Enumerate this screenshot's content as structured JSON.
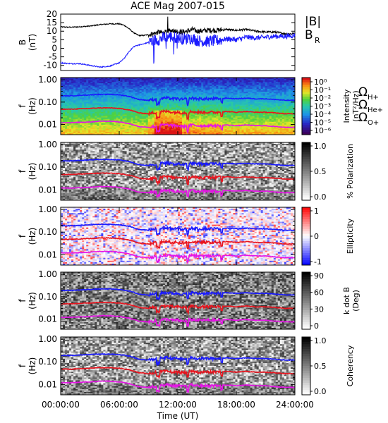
{
  "title": "ACE Mag 2007-015",
  "chart_data": [
    {
      "type": "line",
      "panel": "b-field",
      "ylabel": "B\n(nT)",
      "ylim": [
        -13,
        20
      ],
      "yticks": [
        20,
        15,
        10,
        5,
        0,
        -5,
        -10
      ],
      "x_unit_hours": [
        0,
        24
      ],
      "legend": [
        {
          "label": "|B|",
          "color": "#000000"
        },
        {
          "label": "B",
          "sub": "R",
          "color": "#1a1aff"
        }
      ],
      "series": [
        {
          "name": "|B|",
          "color": "#000000",
          "x": [
            0,
            1,
            2,
            3,
            4,
            5,
            6,
            6.5,
            7,
            7.5,
            8,
            8.5,
            9,
            9.5,
            10,
            10.5,
            11,
            11.5,
            12,
            12.5,
            13,
            13.5,
            14,
            15,
            16,
            17,
            18,
            19,
            20,
            21,
            22,
            23,
            24
          ],
          "y": [
            12.5,
            12.3,
            12.6,
            13.0,
            13.8,
            14.3,
            14.3,
            13.5,
            11.5,
            9.0,
            7.5,
            7.5,
            8.0,
            8.5,
            9.5,
            9.0,
            10.0,
            10.5,
            10.0,
            9.5,
            10.0,
            11.0,
            10.0,
            10.5,
            10.5,
            11.0,
            10.5,
            11.0,
            10.0,
            9.5,
            9.5,
            8.5,
            8.5
          ]
        },
        {
          "name": "BR",
          "color": "#1a1aff",
          "x": [
            0,
            1,
            2,
            3,
            4,
            5,
            6,
            6.5,
            7,
            7.5,
            8,
            8.5,
            9,
            9.5,
            10,
            10.5,
            11,
            11.5,
            12,
            12.5,
            13,
            13.5,
            14,
            15,
            16,
            17,
            18,
            19,
            20,
            21,
            22,
            23,
            24
          ],
          "y": [
            -8.5,
            -9.0,
            -9.0,
            -10.0,
            -11.0,
            -10.5,
            -8.5,
            -6.0,
            -2.0,
            1.0,
            2.0,
            2.5,
            3.5,
            4.5,
            5.0,
            6.0,
            7.0,
            6.5,
            6.5,
            5.5,
            5.5,
            6.0,
            4.5,
            4.0,
            4.5,
            5.5,
            5.0,
            6.5,
            6.0,
            6.5,
            7.0,
            7.0,
            7.5
          ]
        }
      ]
    },
    {
      "type": "heatmap",
      "panel": "intensity",
      "ylabel": "f\n(Hz)",
      "ytick_labels": [
        "1.00",
        "0.10",
        "0.01"
      ],
      "colorbar": {
        "label": "Intensity\n(nT²/Hz)",
        "ticks": [
          "10⁰",
          "10⁻¹",
          "10⁻²",
          "10⁻³",
          "10⁻⁴",
          "10⁻⁵",
          "10⁻⁶"
        ],
        "scale": "rainbow"
      },
      "right_labels": [
        {
          "label": "Ω",
          "sub": "H+",
          "color": "#1a1aff"
        },
        {
          "label": "Ω",
          "sub": "He+",
          "color": "#e8141e"
        },
        {
          "label": "Ω",
          "sub": "O+",
          "color": "#e614e6"
        }
      ]
    },
    {
      "type": "heatmap",
      "panel": "polarization",
      "ylabel": "f\n(Hz)",
      "ytick_labels": [
        "1.00",
        "0.10",
        "0.01"
      ],
      "colorbar": {
        "label": "% Polarization",
        "ticks": [
          "1.0",
          "0.5",
          "0.0"
        ],
        "scale": "gray"
      }
    },
    {
      "type": "heatmap",
      "panel": "ellipticity",
      "ylabel": "f\n(Hz)",
      "ytick_labels": [
        "1.00",
        "0.10",
        "0.01"
      ],
      "colorbar": {
        "label": "Ellipticity",
        "ticks": [
          "1",
          "0",
          "-1"
        ],
        "scale": "bwr"
      }
    },
    {
      "type": "heatmap",
      "panel": "k-dot-b",
      "ylabel": "f\n(Hz)",
      "ytick_labels": [
        "1.00",
        "0.10",
        "0.01"
      ],
      "colorbar": {
        "label": "k dot B\n(Deg)",
        "ticks": [
          "90",
          "60",
          "30",
          "0"
        ],
        "scale": "gray"
      }
    },
    {
      "type": "heatmap",
      "panel": "coherency",
      "ylabel": "f\n(Hz)",
      "ytick_labels": [
        "1.00",
        "0.10",
        "0.01"
      ],
      "colorbar": {
        "label": "Coherency",
        "ticks": [
          "1.0",
          "0.5",
          "0.0"
        ],
        "scale": "gray"
      },
      "xtick_labels": [
        "00:00:00",
        "06:00:00",
        "12:00:00",
        "18:00:00",
        "24:00:00"
      ],
      "xlabel": "Time (UT)"
    }
  ],
  "gyro_lines": {
    "x_hours": [
      0,
      1,
      2,
      3,
      4,
      5,
      6,
      7,
      8,
      9,
      9.5,
      10,
      10.5,
      11,
      11.5,
      12,
      12.5,
      13,
      13.5,
      14,
      15,
      16,
      17,
      18,
      19,
      20,
      21,
      22,
      23,
      24
    ],
    "H_plus_hz": [
      0.19,
      0.19,
      0.2,
      0.21,
      0.22,
      0.22,
      0.21,
      0.18,
      0.13,
      0.12,
      0.13,
      0.14,
      0.15,
      0.15,
      0.14,
      0.14,
      0.13,
      0.14,
      0.15,
      0.14,
      0.14,
      0.14,
      0.15,
      0.14,
      0.15,
      0.14,
      0.14,
      0.13,
      0.12,
      0.12
    ],
    "He_plus_hz": [
      0.048,
      0.048,
      0.05,
      0.052,
      0.055,
      0.055,
      0.052,
      0.045,
      0.033,
      0.03,
      0.033,
      0.035,
      0.038,
      0.038,
      0.035,
      0.035,
      0.033,
      0.035,
      0.038,
      0.035,
      0.035,
      0.035,
      0.038,
      0.035,
      0.038,
      0.035,
      0.035,
      0.033,
      0.03,
      0.03
    ],
    "O_plus_hz": [
      0.012,
      0.012,
      0.0125,
      0.013,
      0.014,
      0.014,
      0.013,
      0.011,
      0.008,
      0.0075,
      0.008,
      0.0088,
      0.0095,
      0.0095,
      0.0088,
      0.0088,
      0.008,
      0.0088,
      0.0095,
      0.0088,
      0.0088,
      0.0088,
      0.0095,
      0.0088,
      0.0095,
      0.0088,
      0.0088,
      0.008,
      0.0075,
      0.0075
    ],
    "colors": {
      "H": "#1a1aff",
      "He": "#e8141e",
      "O": "#e614e6"
    }
  }
}
